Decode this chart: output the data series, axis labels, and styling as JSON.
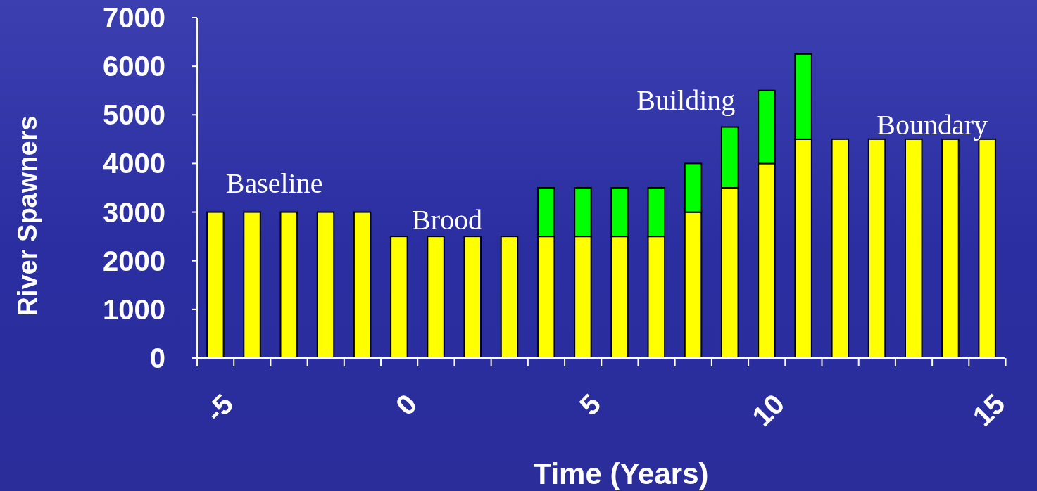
{
  "chart_data": {
    "type": "bar",
    "stacked": true,
    "xlabel": "Time (Years)",
    "ylabel": "River Spawners",
    "categories": [
      "-5",
      null,
      null,
      null,
      null,
      "0",
      null,
      null,
      null,
      null,
      "5",
      null,
      null,
      null,
      null,
      "10",
      null,
      null,
      null,
      null,
      null,
      "15"
    ],
    "series": [
      {
        "color": "#ffff00",
        "values": [
          3000,
          3000,
          3000,
          3000,
          3000,
          2500,
          2500,
          2500,
          2500,
          2500,
          2500,
          2500,
          2500,
          3000,
          3500,
          4000,
          4500,
          4500,
          4500,
          4500,
          4500,
          4500
        ]
      },
      {
        "color": "#00ff00",
        "values": [
          null,
          null,
          null,
          null,
          null,
          null,
          null,
          null,
          null,
          1000,
          1000,
          1000,
          1000,
          1000,
          1250,
          1500,
          1750,
          null,
          null,
          null,
          null,
          null
        ]
      }
    ],
    "ylim": [
      0,
      7000
    ],
    "yticks": [
      0,
      1000,
      2000,
      3000,
      4000,
      5000,
      6000,
      7000
    ],
    "grid": false,
    "annotations": [
      "Baseline",
      "Brood",
      "Building",
      "Boundary"
    ]
  }
}
